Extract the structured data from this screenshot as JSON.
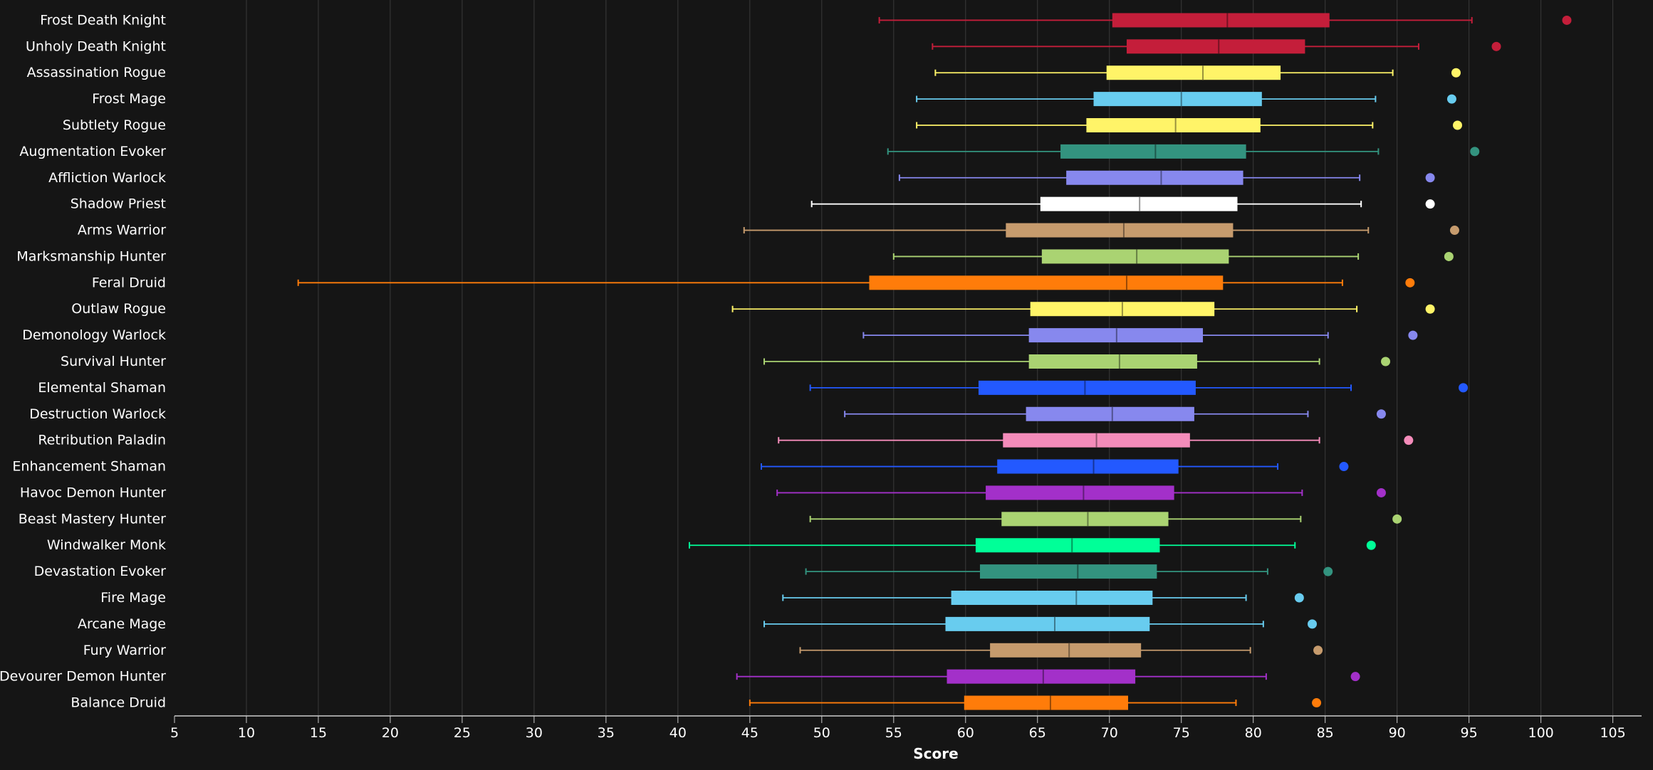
{
  "chart_data": {
    "type": "boxplot",
    "title": "",
    "xlabel": "Score",
    "ylabel": "",
    "xlim": [
      5,
      107
    ],
    "xticks": [
      5,
      10,
      15,
      20,
      25,
      30,
      35,
      40,
      45,
      50,
      55,
      60,
      65,
      70,
      75,
      80,
      85,
      90,
      95,
      100,
      105
    ],
    "grid": "vertical",
    "legend": "none",
    "background": "#151515",
    "series": [
      {
        "name": "Frost Death Knight",
        "color": "#C41E3A",
        "min": 54.0,
        "q1": 70.2,
        "median": 78.2,
        "q3": 85.3,
        "max": 95.2,
        "outlier": 101.8
      },
      {
        "name": "Unholy Death Knight",
        "color": "#C41E3A",
        "min": 57.7,
        "q1": 71.2,
        "median": 77.6,
        "q3": 83.6,
        "max": 91.5,
        "outlier": 96.9
      },
      {
        "name": "Assassination Rogue",
        "color": "#FFF468",
        "min": 57.9,
        "q1": 69.8,
        "median": 76.5,
        "q3": 81.9,
        "max": 89.7,
        "outlier": 94.1
      },
      {
        "name": "Frost Mage",
        "color": "#68CCEF",
        "min": 56.6,
        "q1": 68.9,
        "median": 75.0,
        "q3": 80.6,
        "max": 88.5,
        "outlier": 93.8
      },
      {
        "name": "Subtlety Rogue",
        "color": "#FFF468",
        "min": 56.6,
        "q1": 68.4,
        "median": 74.6,
        "q3": 80.5,
        "max": 88.3,
        "outlier": 94.2
      },
      {
        "name": "Augmentation Evoker",
        "color": "#33937F",
        "min": 54.6,
        "q1": 66.6,
        "median": 73.2,
        "q3": 79.5,
        "max": 88.7,
        "outlier": 95.4
      },
      {
        "name": "Affliction Warlock",
        "color": "#8788EE",
        "min": 55.4,
        "q1": 67.0,
        "median": 73.6,
        "q3": 79.3,
        "max": 87.4,
        "outlier": 92.3
      },
      {
        "name": "Shadow Priest",
        "color": "#FFFFFF",
        "min": 49.3,
        "q1": 65.2,
        "median": 72.1,
        "q3": 78.9,
        "max": 87.5,
        "outlier": 92.3
      },
      {
        "name": "Arms Warrior",
        "color": "#C69B6D",
        "min": 44.6,
        "q1": 62.8,
        "median": 71.0,
        "q3": 78.6,
        "max": 88.0,
        "outlier": 94.0
      },
      {
        "name": "Marksmanship Hunter",
        "color": "#AAD372",
        "min": 55.0,
        "q1": 65.3,
        "median": 71.9,
        "q3": 78.3,
        "max": 87.3,
        "outlier": 93.6
      },
      {
        "name": "Feral Druid",
        "color": "#FF7C0A",
        "min": 13.6,
        "q1": 53.3,
        "median": 71.2,
        "q3": 77.9,
        "max": 86.2,
        "outlier": 90.9
      },
      {
        "name": "Outlaw Rogue",
        "color": "#FFF468",
        "min": 43.8,
        "q1": 64.5,
        "median": 70.9,
        "q3": 77.3,
        "max": 87.2,
        "outlier": 92.3
      },
      {
        "name": "Demonology Warlock",
        "color": "#8788EE",
        "min": 52.9,
        "q1": 64.4,
        "median": 70.5,
        "q3": 76.5,
        "max": 85.2,
        "outlier": 91.1
      },
      {
        "name": "Survival Hunter",
        "color": "#AAD372",
        "min": 46.0,
        "q1": 64.4,
        "median": 70.7,
        "q3": 76.1,
        "max": 84.6,
        "outlier": 89.2
      },
      {
        "name": "Elemental Shaman",
        "color": "#2359FF",
        "min": 49.2,
        "q1": 60.9,
        "median": 68.3,
        "q3": 76.0,
        "max": 86.8,
        "outlier": 94.6
      },
      {
        "name": "Destruction Warlock",
        "color": "#8788EE",
        "min": 51.6,
        "q1": 64.2,
        "median": 70.2,
        "q3": 75.9,
        "max": 83.8,
        "outlier": 88.9
      },
      {
        "name": "Retribution Paladin",
        "color": "#F48CBA",
        "min": 47.0,
        "q1": 62.6,
        "median": 69.1,
        "q3": 75.6,
        "max": 84.6,
        "outlier": 90.8
      },
      {
        "name": "Enhancement Shaman",
        "color": "#2359FF",
        "min": 45.8,
        "q1": 62.2,
        "median": 68.9,
        "q3": 74.8,
        "max": 81.7,
        "outlier": 86.3
      },
      {
        "name": "Havoc Demon Hunter",
        "color": "#A330C9",
        "min": 46.9,
        "q1": 61.4,
        "median": 68.2,
        "q3": 74.5,
        "max": 83.4,
        "outlier": 88.9
      },
      {
        "name": "Beast Mastery Hunter",
        "color": "#AAD372",
        "min": 49.2,
        "q1": 62.5,
        "median": 68.5,
        "q3": 74.1,
        "max": 83.3,
        "outlier": 90.0
      },
      {
        "name": "Windwalker Monk",
        "color": "#00FF98",
        "min": 40.8,
        "q1": 60.7,
        "median": 67.4,
        "q3": 73.5,
        "max": 82.9,
        "outlier": 88.2
      },
      {
        "name": "Devastation Evoker",
        "color": "#33937F",
        "min": 48.9,
        "q1": 61.0,
        "median": 67.8,
        "q3": 73.3,
        "max": 81.0,
        "outlier": 85.2
      },
      {
        "name": "Fire Mage",
        "color": "#68CCEF",
        "min": 47.3,
        "q1": 59.0,
        "median": 67.7,
        "q3": 73.0,
        "max": 79.5,
        "outlier": 83.2
      },
      {
        "name": "Arcane Mage",
        "color": "#68CCEF",
        "min": 46.0,
        "q1": 58.6,
        "median": 66.2,
        "q3": 72.8,
        "max": 80.7,
        "outlier": 84.1
      },
      {
        "name": "Fury Warrior",
        "color": "#C69B6D",
        "min": 48.5,
        "q1": 61.7,
        "median": 67.2,
        "q3": 72.2,
        "max": 79.8,
        "outlier": 84.5
      },
      {
        "name": "Devourer Demon Hunter",
        "color": "#A330C9",
        "min": 44.1,
        "q1": 58.7,
        "median": 65.4,
        "q3": 71.8,
        "max": 80.9,
        "outlier": 87.1
      },
      {
        "name": "Balance Druid",
        "color": "#FF7C0A",
        "min": 45.0,
        "q1": 59.9,
        "median": 65.9,
        "q3": 71.3,
        "max": 78.8,
        "outlier": 84.4
      }
    ]
  }
}
